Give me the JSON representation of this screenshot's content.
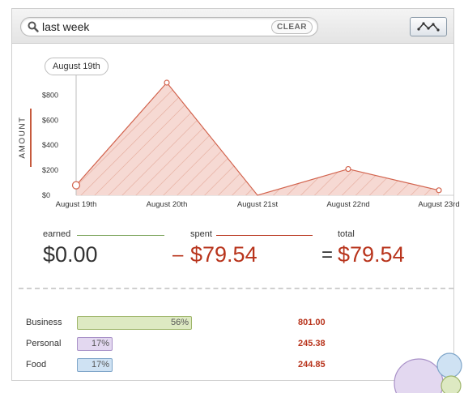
{
  "search": {
    "value": "last week",
    "clear_label": "CLEAR"
  },
  "toggle": {
    "icon": "line-chart-icon"
  },
  "tooltip": "August 19th",
  "chart_data": {
    "type": "area",
    "title": "",
    "ylabel": "AMOUNT",
    "ylim": [
      0,
      900
    ],
    "yticks": [
      "$0",
      "$200",
      "$400",
      "$600",
      "$800"
    ],
    "x": [
      "August 19th",
      "August 20th",
      "August 21st",
      "August 22nd",
      "August 23rd"
    ],
    "values": [
      80,
      900,
      0,
      210,
      40
    ],
    "colors": {
      "line": "#d2634d",
      "fill": "#f6d9d3",
      "hatch": "#e4a898"
    }
  },
  "totals": {
    "earned_label": "earned",
    "earned_value": "$0.00",
    "spent_sign": "–",
    "spent_label": "spent",
    "spent_value": "$79.54",
    "total_sign": "=",
    "total_label": "total",
    "total_value": "$79.54",
    "colors": {
      "earned": "#7aa35a",
      "spent": "#b8341c"
    }
  },
  "categories": [
    {
      "name": "Business",
      "percent": "56%",
      "fraction": 0.56,
      "amount": "801.00",
      "fill": "#dde9c2",
      "border": "#9eb56a"
    },
    {
      "name": "Personal",
      "percent": "17%",
      "fraction": 0.17,
      "amount": "245.38",
      "fill": "#e3d8f0",
      "border": "#a991c8"
    },
    {
      "name": "Food",
      "percent": "17%",
      "fraction": 0.17,
      "amount": "244.85",
      "fill": "#cfe2f3",
      "border": "#7ea5c9"
    }
  ]
}
